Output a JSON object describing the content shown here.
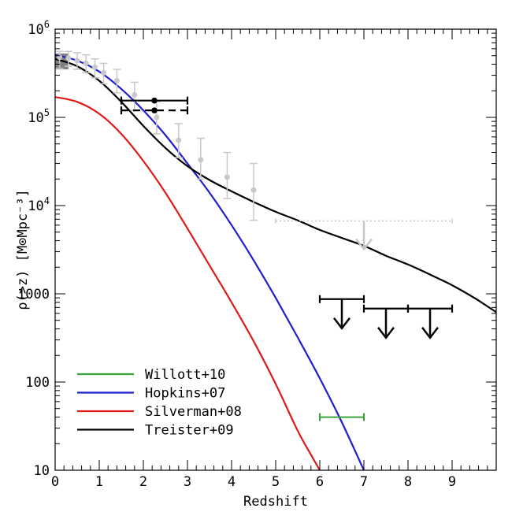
{
  "chart_data": {
    "type": "line",
    "xlabel": "Redshift",
    "ylabel": "ρ(>z)  [M⊙Mpc⁻³]",
    "xlim": [
      0,
      10
    ],
    "ylim": [
      10,
      1000000
    ],
    "yscale": "log",
    "x_ticks": [
      {
        "value": 0,
        "label": "0"
      },
      {
        "value": 1,
        "label": "1"
      },
      {
        "value": 2,
        "label": "2"
      },
      {
        "value": 3,
        "label": "3"
      },
      {
        "value": 4,
        "label": "4"
      },
      {
        "value": 5,
        "label": "5"
      },
      {
        "value": 6,
        "label": "6"
      },
      {
        "value": 7,
        "label": "7"
      },
      {
        "value": 8,
        "label": "8"
      },
      {
        "value": 9,
        "label": "9"
      }
    ],
    "y_ticks": [
      {
        "value": 10,
        "label": "10",
        "base": "10",
        "exp": ""
      },
      {
        "value": 100,
        "label": "100",
        "base": "100",
        "exp": ""
      },
      {
        "value": 1000,
        "label": "1000",
        "base": "1000",
        "exp": ""
      },
      {
        "value": 10000,
        "label": "10⁴",
        "base": "10",
        "exp": "4"
      },
      {
        "value": 100000,
        "label": "10⁵",
        "base": "10",
        "exp": "5"
      },
      {
        "value": 1000000,
        "label": "10⁶",
        "base": "10",
        "exp": "6"
      }
    ],
    "grid": false,
    "legend_position": "bottom-left",
    "series": [
      {
        "name": "Willott+10",
        "color": "#3aa23a",
        "kind": "errorbar",
        "points": [
          {
            "x": 6.5,
            "y": 40,
            "xerr": [
              6.0,
              7.0
            ]
          }
        ]
      },
      {
        "name": "Hopkins+07",
        "color": "#1f1fd0",
        "kind": "line",
        "x": [
          0,
          0.5,
          1,
          1.5,
          2,
          2.5,
          3,
          3.5,
          4,
          4.5,
          5,
          5.5,
          6,
          6.5,
          7
        ],
        "y": [
          510000,
          440000,
          330000,
          210000,
          120000,
          63000,
          30000,
          14000,
          6000,
          2400,
          900,
          320,
          110,
          35,
          10
        ]
      },
      {
        "name": "Silverman+08",
        "color": "#e01a1a",
        "kind": "line",
        "x": [
          0,
          0.5,
          1,
          1.5,
          2,
          2.5,
          3,
          3.5,
          4,
          4.5,
          5,
          5.5,
          5.8,
          6
        ],
        "y": [
          170000,
          150000,
          110000,
          65000,
          32000,
          14000,
          5500,
          2100,
          800,
          290,
          95,
          28,
          15,
          10
        ]
      },
      {
        "name": "Treister+09",
        "color": "#000000",
        "kind": "line",
        "x": [
          0,
          0.5,
          1,
          1.5,
          2,
          2.5,
          3,
          3.5,
          4,
          4.5,
          5,
          5.5,
          6,
          6.5,
          7,
          7.5,
          8,
          8.5,
          9,
          9.5,
          10
        ],
        "y": [
          460000,
          380000,
          260000,
          150000,
          80000,
          45000,
          28000,
          19500,
          14500,
          11000,
          8500,
          6800,
          5300,
          4300,
          3500,
          2700,
          2150,
          1650,
          1250,
          900,
          620
        ]
      },
      {
        "name": "",
        "color": "#c8c8c8",
        "kind": "gray-errorbars",
        "points": [
          {
            "x": 0.1,
            "y": 480000,
            "lo": 360000,
            "hi": 560000
          },
          {
            "x": 0.3,
            "y": 470000,
            "lo": 380000,
            "hi": 560000
          },
          {
            "x": 0.5,
            "y": 440000,
            "lo": 350000,
            "hi": 540000
          },
          {
            "x": 0.7,
            "y": 410000,
            "lo": 320000,
            "hi": 510000
          },
          {
            "x": 0.9,
            "y": 370000,
            "lo": 280000,
            "hi": 460000
          },
          {
            "x": 1.1,
            "y": 320000,
            "lo": 240000,
            "hi": 410000
          },
          {
            "x": 1.4,
            "y": 260000,
            "lo": 190000,
            "hi": 350000
          },
          {
            "x": 1.8,
            "y": 180000,
            "lo": 120000,
            "hi": 250000
          },
          {
            "x": 2.3,
            "y": 100000,
            "lo": 65000,
            "hi": 150000
          },
          {
            "x": 2.8,
            "y": 55000,
            "lo": 35000,
            "hi": 85000
          },
          {
            "x": 3.3,
            "y": 33000,
            "lo": 20000,
            "hi": 58000
          },
          {
            "x": 3.9,
            "y": 21000,
            "lo": 12000,
            "hi": 40000
          },
          {
            "x": 4.5,
            "y": 15000,
            "lo": 6800,
            "hi": 30000
          }
        ],
        "upper_limit": {
          "x_start": 5.0,
          "x_end": 9.0,
          "y": 6700,
          "arrow_x": 7.0
        }
      },
      {
        "name": "",
        "color": "#000000",
        "kind": "upper-limits",
        "points": [
          {
            "x": 6.5,
            "y": 870,
            "x_start": 6.0,
            "x_end": 7.0
          },
          {
            "x": 7.5,
            "y": 680,
            "x_start": 7.0,
            "x_end": 8.0
          },
          {
            "x": 8.5,
            "y": 680,
            "x_start": 8.0,
            "x_end": 9.0
          }
        ]
      },
      {
        "name": "",
        "color": "#000000",
        "kind": "hbars",
        "points": [
          {
            "x": 2.25,
            "y": 155000,
            "x_start": 1.5,
            "x_end": 3.0,
            "style": "solid"
          },
          {
            "x": 2.25,
            "y": 120000,
            "x_start": 1.5,
            "x_end": 3.0,
            "style": "dashed"
          }
        ]
      },
      {
        "name": "",
        "color": "#808080",
        "kind": "box",
        "points": [
          {
            "x_start": 0,
            "x_end": 0.3,
            "y_lo": 350000,
            "y_hi": 530000
          }
        ]
      }
    ]
  },
  "legend": [
    {
      "name": "Willott+10",
      "color": "#3aa23a"
    },
    {
      "name": "Hopkins+07",
      "color": "#1f1fd0"
    },
    {
      "name": "Silverman+08",
      "color": "#e01a1a"
    },
    {
      "name": "Treister+09",
      "color": "#000000"
    }
  ]
}
